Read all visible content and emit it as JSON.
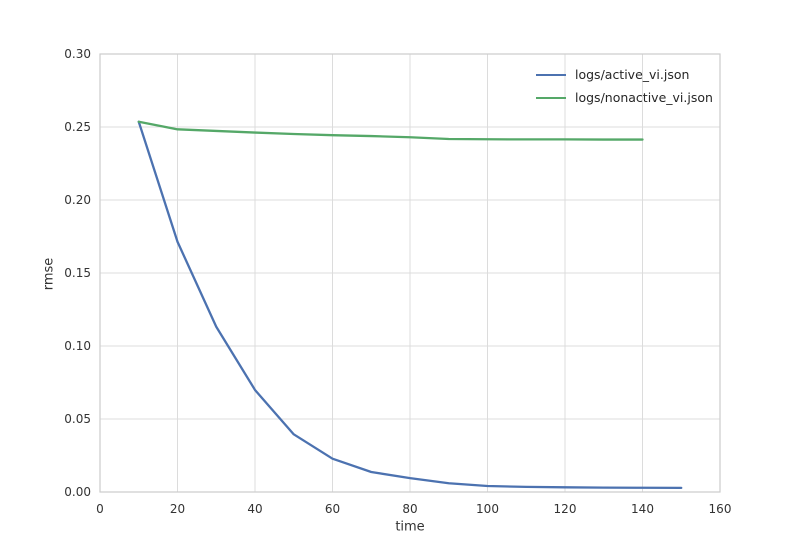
{
  "chart_data": {
    "type": "line",
    "title": "",
    "xlabel": "time",
    "ylabel": "rmse",
    "xlim": [
      0,
      160
    ],
    "ylim": [
      0.0,
      0.3
    ],
    "grid": true,
    "legend_position": "upper right",
    "xticks": {
      "values": [
        0,
        20,
        40,
        60,
        80,
        100,
        120,
        140,
        160
      ],
      "labels": [
        "0",
        "20",
        "40",
        "60",
        "80",
        "100",
        "120",
        "140",
        "160"
      ]
    },
    "yticks": {
      "values": [
        0.0,
        0.05,
        0.1,
        0.15,
        0.2,
        0.25,
        0.3
      ],
      "labels": [
        "0.00",
        "0.05",
        "0.10",
        "0.15",
        "0.20",
        "0.25",
        "0.30"
      ]
    },
    "series": [
      {
        "name": "logs/active_vi.json",
        "color": "#4C72B0",
        "x": [
          10,
          20,
          30,
          40,
          50,
          60,
          70,
          80,
          90,
          100,
          110,
          120,
          130,
          140,
          150
        ],
        "y": [
          0.2536,
          0.1714,
          0.1132,
          0.0699,
          0.0395,
          0.0228,
          0.0137,
          0.0095,
          0.006,
          0.0041,
          0.0035,
          0.0032,
          0.003,
          0.0029,
          0.0028
        ]
      },
      {
        "name": "logs/nonactive_vi.json",
        "color": "#55A868",
        "x": [
          10,
          20,
          30,
          40,
          50,
          60,
          70,
          80,
          90,
          100,
          110,
          120,
          130,
          140
        ],
        "y": [
          0.2536,
          0.2484,
          0.2473,
          0.2462,
          0.2452,
          0.2444,
          0.2438,
          0.243,
          0.2418,
          0.2416,
          0.2415,
          0.2415,
          0.2414,
          0.2414
        ]
      }
    ],
    "colors": {
      "background": "#FFFFFF",
      "grid": "#DCDCDC",
      "spine": "#CCCCCC",
      "tick_text": "#333333"
    }
  }
}
